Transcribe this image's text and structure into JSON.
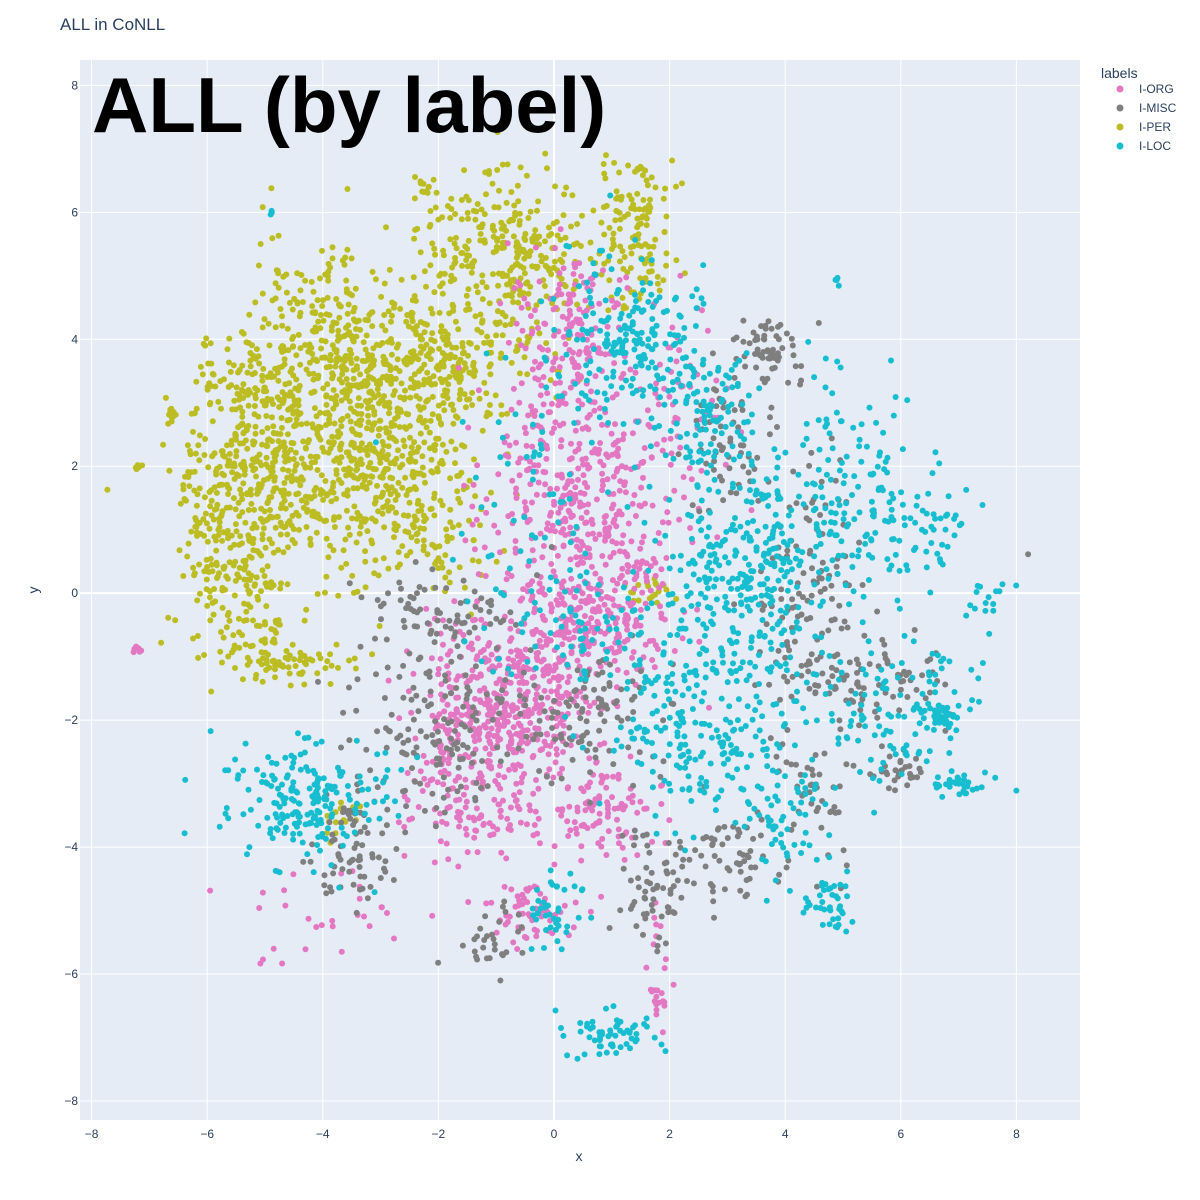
{
  "chart_data": {
    "type": "scatter",
    "title": "ALL in CoNLL",
    "annotation": "ALL (by label)",
    "xlabel": "x",
    "ylabel": "y",
    "xlim": [
      -8.2,
      9.1
    ],
    "ylim": [
      -8.3,
      8.4
    ],
    "x_ticks": [
      -8,
      -6,
      -4,
      -2,
      0,
      2,
      4,
      6,
      8
    ],
    "y_ticks": [
      -8,
      -6,
      -4,
      -2,
      0,
      2,
      4,
      6,
      8
    ],
    "tick_labels_x": [
      "−8",
      "−6",
      "−4",
      "−2",
      "0",
      "2",
      "4",
      "6",
      "8"
    ],
    "tick_labels_y": [
      "−8",
      "−6",
      "−4",
      "−2",
      "0",
      "2",
      "4",
      "6",
      "8"
    ],
    "grid": true,
    "legend": {
      "title": "labels",
      "placement": "top-right-outside",
      "entries": [
        "I-ORG",
        "I-MISC",
        "I-PER",
        "I-LOC"
      ]
    },
    "colors": {
      "I-ORG": "#e377c2",
      "I-MISC": "#7f7f7f",
      "I-PER": "#bcbd22",
      "I-LOC": "#17becf",
      "plot_bg": "#e5ecf6",
      "grid": "#ffffff",
      "text": "#2a3f5f"
    },
    "series": [
      {
        "name": "I-PER",
        "clusters": [
          {
            "cx": -4.2,
            "cy": 2.0,
            "sx": 0.9,
            "sy": 0.9,
            "n": 420
          },
          {
            "cx": -3.3,
            "cy": 3.6,
            "sx": 0.6,
            "sy": 0.6,
            "n": 260
          },
          {
            "cx": -1.8,
            "cy": 3.7,
            "sx": 0.6,
            "sy": 0.6,
            "n": 200
          },
          {
            "cx": -5.6,
            "cy": 1.0,
            "sx": 0.45,
            "sy": 0.9,
            "n": 200
          },
          {
            "cx": -5.3,
            "cy": 3.0,
            "sx": 0.5,
            "sy": 0.7,
            "n": 120
          },
          {
            "cx": -0.5,
            "cy": 5.2,
            "sx": 0.6,
            "sy": 0.7,
            "n": 200
          },
          {
            "cx": 1.4,
            "cy": 5.8,
            "sx": 0.4,
            "sy": 0.6,
            "n": 130
          },
          {
            "cx": -2.8,
            "cy": 2.0,
            "sx": 0.8,
            "sy": 0.7,
            "n": 200
          },
          {
            "cx": -4.3,
            "cy": 4.5,
            "sx": 0.5,
            "sy": 0.6,
            "n": 100
          },
          {
            "cx": -1.5,
            "cy": 5.5,
            "sx": 0.7,
            "sy": 0.6,
            "n": 100
          },
          {
            "cx": -4.6,
            "cy": -1.1,
            "sx": 0.6,
            "sy": 0.15,
            "n": 70
          },
          {
            "cx": -5.3,
            "cy": -0.3,
            "sx": 0.35,
            "sy": 0.45,
            "n": 70
          },
          {
            "cx": -2.2,
            "cy": 0.9,
            "sx": 0.6,
            "sy": 0.6,
            "n": 80
          },
          {
            "cx": -3.7,
            "cy": -3.6,
            "sx": 0.2,
            "sy": 0.2,
            "n": 15
          },
          {
            "cx": 1.7,
            "cy": 0.0,
            "sx": 0.2,
            "sy": 0.1,
            "n": 20
          },
          {
            "cx": -2.2,
            "cy": 6.4,
            "sx": 0.1,
            "sy": 0.1,
            "n": 12
          },
          {
            "cx": -6.6,
            "cy": 2.8,
            "sx": 0.05,
            "sy": 0.1,
            "n": 10
          },
          {
            "cx": -7.2,
            "cy": 2.0,
            "sx": 0.05,
            "sy": 0.03,
            "n": 6
          }
        ]
      },
      {
        "name": "I-ORG",
        "clusters": [
          {
            "cx": 0.5,
            "cy": 1.5,
            "sx": 0.8,
            "sy": 1.0,
            "n": 400
          },
          {
            "cx": -1.0,
            "cy": -2.0,
            "sx": 0.8,
            "sy": 0.6,
            "n": 350
          },
          {
            "cx": 0.8,
            "cy": -0.4,
            "sx": 0.7,
            "sy": 0.5,
            "n": 200
          },
          {
            "cx": 0.3,
            "cy": 4.2,
            "sx": 0.5,
            "sy": 0.6,
            "n": 150
          },
          {
            "cx": -0.6,
            "cy": -1.0,
            "sx": 0.9,
            "sy": 0.6,
            "n": 150
          },
          {
            "cx": -1.5,
            "cy": -3.4,
            "sx": 0.6,
            "sy": 0.4,
            "n": 100
          },
          {
            "cx": 0.8,
            "cy": -3.4,
            "sx": 0.5,
            "sy": 0.4,
            "n": 100
          },
          {
            "cx": -0.4,
            "cy": -5.0,
            "sx": 0.4,
            "sy": 0.3,
            "n": 60
          },
          {
            "cx": 1.8,
            "cy": -6.1,
            "sx": 0.1,
            "sy": 0.5,
            "n": 25
          },
          {
            "cx": -4.2,
            "cy": -5.0,
            "sx": 0.8,
            "sy": 0.6,
            "n": 30
          },
          {
            "cx": 2.2,
            "cy": 3.2,
            "sx": 0.4,
            "sy": 0.8,
            "n": 50
          },
          {
            "cx": -7.2,
            "cy": -0.9,
            "sx": 0.1,
            "sy": 0.05,
            "n": 6
          }
        ]
      },
      {
        "name": "I-MISC",
        "clusters": [
          {
            "cx": -2.0,
            "cy": -2.0,
            "sx": 0.7,
            "sy": 0.7,
            "n": 150
          },
          {
            "cx": -3.4,
            "cy": -4.0,
            "sx": 0.4,
            "sy": 0.5,
            "n": 80
          },
          {
            "cx": 3.7,
            "cy": 3.9,
            "sx": 0.3,
            "sy": 0.3,
            "n": 60
          },
          {
            "cx": 4.4,
            "cy": 0.0,
            "sx": 0.6,
            "sy": 1.0,
            "n": 120
          },
          {
            "cx": 5.5,
            "cy": -1.4,
            "sx": 0.7,
            "sy": 0.3,
            "n": 80
          },
          {
            "cx": 1.7,
            "cy": -4.6,
            "sx": 0.3,
            "sy": 0.5,
            "n": 60
          },
          {
            "cx": 2.9,
            "cy": -4.2,
            "sx": 0.5,
            "sy": 0.4,
            "n": 60
          },
          {
            "cx": 0.7,
            "cy": -2.0,
            "sx": 0.6,
            "sy": 0.5,
            "n": 100
          },
          {
            "cx": 3.0,
            "cy": 2.5,
            "sx": 0.5,
            "sy": 0.6,
            "n": 60
          },
          {
            "cx": -1.0,
            "cy": -5.5,
            "sx": 0.3,
            "sy": 0.3,
            "n": 30
          },
          {
            "cx": -2.0,
            "cy": -0.2,
            "sx": 0.6,
            "sy": 0.3,
            "n": 60
          },
          {
            "cx": 4.5,
            "cy": -3.3,
            "sx": 0.3,
            "sy": 0.5,
            "n": 40
          },
          {
            "cx": 5.9,
            "cy": -2.8,
            "sx": 0.3,
            "sy": 0.2,
            "n": 30
          },
          {
            "cx": 8.2,
            "cy": 0.6,
            "sx": 0.01,
            "sy": 0.01,
            "n": 1
          }
        ]
      },
      {
        "name": "I-LOC",
        "clusters": [
          {
            "cx": 3.4,
            "cy": 0.3,
            "sx": 0.7,
            "sy": 0.9,
            "n": 300
          },
          {
            "cx": 2.5,
            "cy": -2.2,
            "sx": 0.7,
            "sy": 0.7,
            "n": 200
          },
          {
            "cx": 1.3,
            "cy": 4.0,
            "sx": 0.7,
            "sy": 0.7,
            "n": 200
          },
          {
            "cx": -4.3,
            "cy": -3.3,
            "sx": 0.7,
            "sy": 0.5,
            "n": 200
          },
          {
            "cx": 2.7,
            "cy": 2.8,
            "sx": 0.4,
            "sy": 0.5,
            "n": 100
          },
          {
            "cx": 5.2,
            "cy": 1.5,
            "sx": 0.6,
            "sy": 0.9,
            "n": 150
          },
          {
            "cx": 6.0,
            "cy": -1.8,
            "sx": 0.8,
            "sy": 0.6,
            "n": 120
          },
          {
            "cx": 1.0,
            "cy": -7.0,
            "sx": 0.4,
            "sy": 0.2,
            "n": 60
          },
          {
            "cx": 0.0,
            "cy": -5.0,
            "sx": 0.3,
            "sy": 0.4,
            "n": 40
          },
          {
            "cx": 4.8,
            "cy": -4.9,
            "sx": 0.3,
            "sy": 0.2,
            "n": 40
          },
          {
            "cx": 4.0,
            "cy": -3.5,
            "sx": 0.5,
            "sy": 0.5,
            "n": 60
          },
          {
            "cx": 7.0,
            "cy": -3.0,
            "sx": 0.2,
            "sy": 0.1,
            "n": 30
          },
          {
            "cx": 6.7,
            "cy": -1.9,
            "sx": 0.2,
            "sy": 0.1,
            "n": 30
          },
          {
            "cx": 7.5,
            "cy": 0.1,
            "sx": 0.2,
            "sy": 0.2,
            "n": 15
          },
          {
            "cx": 6.4,
            "cy": 1.0,
            "sx": 0.5,
            "sy": 0.4,
            "n": 40
          },
          {
            "cx": -4.9,
            "cy": 6.0,
            "sx": 0.02,
            "sy": 0.02,
            "n": 3
          },
          {
            "cx": -6.4,
            "cy": -3.8,
            "sx": 0.02,
            "sy": 0.02,
            "n": 1
          },
          {
            "cx": 0.6,
            "cy": -0.5,
            "sx": 0.8,
            "sy": 0.5,
            "n": 80
          },
          {
            "cx": -0.5,
            "cy": 1.5,
            "sx": 0.9,
            "sy": 1.0,
            "n": 60
          },
          {
            "cx": 4.9,
            "cy": 4.9,
            "sx": 0.05,
            "sy": 0.05,
            "n": 4
          }
        ]
      }
    ]
  }
}
